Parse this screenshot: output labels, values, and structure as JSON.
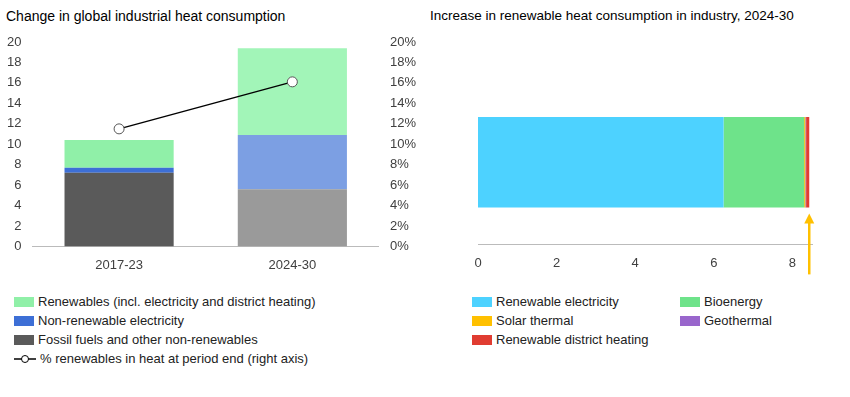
{
  "chart_data": [
    {
      "type": "bar",
      "title": "Change in global industrial heat consumption",
      "stacked": true,
      "legend": "bottom",
      "grid": false,
      "categories": [
        "2017-23",
        "2024-30"
      ],
      "series": [
        {
          "name": "Renewables (incl. electricity and district heating)",
          "color": "#90f0a8",
          "colors": [
            "#90f0a8",
            "#a2f5b8"
          ],
          "values": [
            2.7,
            8.5
          ]
        },
        {
          "name": "Non-renewable electricity",
          "color": "#3d6fd6",
          "colors": [
            "#3d6fd6",
            "#7c9fe3"
          ],
          "values": [
            0.5,
            5.3
          ]
        },
        {
          "name": "Fossil fuels and other non-renewables",
          "color": "#5a5a5a",
          "colors": [
            "#5a5a5a",
            "#9a9a9a"
          ],
          "values": [
            7.2,
            5.6
          ]
        },
        {
          "name": "% renewables in heat at period end (right axis)",
          "type": "line",
          "axis": "y2",
          "color": "#000000",
          "marker": "circle",
          "values": [
            11.5,
            16.1
          ]
        }
      ],
      "ylim": [
        0,
        20
      ],
      "yticks": [
        0,
        2,
        4,
        6,
        8,
        10,
        12,
        14,
        16,
        18,
        20
      ],
      "y2lim": [
        0,
        20
      ],
      "y2ticks": [
        {
          "value": 0,
          "label": "0%"
        },
        {
          "value": 2,
          "label": "2%"
        },
        {
          "value": 4,
          "label": "4%"
        },
        {
          "value": 6,
          "label": "6%"
        },
        {
          "value": 8,
          "label": "8%"
        },
        {
          "value": 10,
          "label": "10%"
        },
        {
          "value": 12,
          "label": "12%"
        },
        {
          "value": 14,
          "label": "14%"
        },
        {
          "value": 16,
          "label": "16%"
        },
        {
          "value": 18,
          "label": "18%"
        },
        {
          "value": 20,
          "label": "20%"
        }
      ]
    },
    {
      "type": "bar",
      "title": "Increase in renewable heat consumption in industry, 2024-30",
      "orientation": "horizontal",
      "stacked": true,
      "legend": "bottom",
      "grid": false,
      "tick_labels": "x",
      "categories": [
        null
      ],
      "series": [
        {
          "name": "Renewable electricity",
          "color": "#4dd2ff",
          "values": [
            6.25
          ]
        },
        {
          "name": "Bioenergy",
          "color": "#6ee38a",
          "values": [
            2.05
          ]
        },
        {
          "name": "Solar thermal",
          "color": "#ffc000",
          "values": [
            0.03
          ]
        },
        {
          "name": "Geothermal",
          "color": "#9966cc",
          "values": [
            0.02
          ]
        },
        {
          "name": "Renewable district heating",
          "color": "#e03c31",
          "values": [
            0.08
          ]
        }
      ],
      "xlim": [
        0,
        8.5
      ],
      "xticks": [
        0,
        2,
        4,
        6,
        8
      ]
    }
  ]
}
